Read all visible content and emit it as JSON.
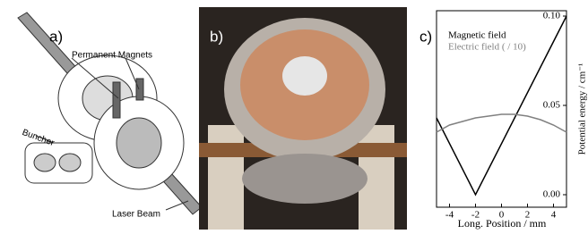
{
  "panel_a": {
    "label": "a)",
    "annotations": [
      "Permanent Magnets",
      "Buncher",
      "Laser Beam"
    ]
  },
  "panel_b": {
    "label": "b)"
  },
  "chart_data": {
    "type": "line",
    "panel_label": "c)",
    "xlabel": "Long. Position / mm",
    "ylabel": "Potential energy / cm⁻¹",
    "xlim": [
      -5,
      5
    ],
    "ylim": [
      -0.007,
      0.103
    ],
    "xticks": [
      -4,
      -2,
      0,
      2,
      4
    ],
    "yticks": [
      {
        "value": 0,
        "label": "0.00"
      },
      {
        "value": 0.05,
        "label": "0.05"
      },
      {
        "value": 0.1,
        "label": "0.10"
      }
    ],
    "series": [
      {
        "name": "Magnetic field",
        "color": "#000000",
        "x": [
          -5,
          -2,
          5
        ],
        "values": [
          0.043,
          0,
          0.1
        ]
      },
      {
        "name": "Electric field ( / 10)",
        "color": "#808080",
        "x": [
          -5,
          -4,
          -3,
          -2,
          -1,
          0,
          1,
          2,
          3,
          4,
          5
        ],
        "values": [
          0.035,
          0.039,
          0.041,
          0.043,
          0.044,
          0.045,
          0.045,
          0.044,
          0.042,
          0.039,
          0.035
        ]
      }
    ]
  }
}
